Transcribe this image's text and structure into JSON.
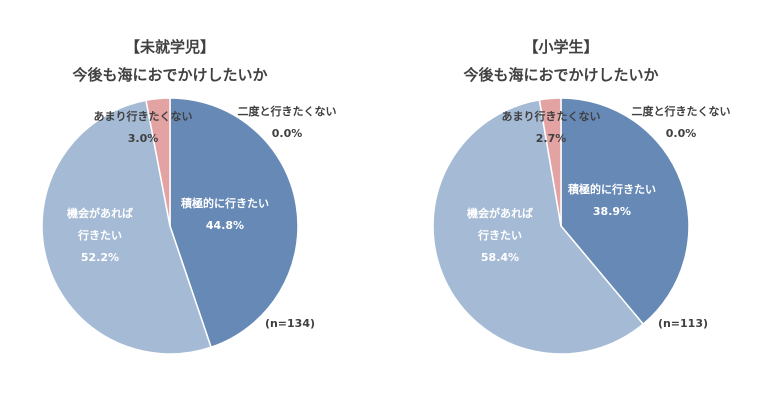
{
  "chart_data": [
    {
      "type": "pie",
      "title": [
        "【未就学児】",
        "今後も海におでかけしたいか"
      ],
      "n_label": "(n=134)",
      "categories": [
        "積極的に行きたい",
        "二度と行きたくない",
        "機会があれば行きたい",
        "あまり行きたくない"
      ],
      "values": [
        44.8,
        0.0,
        52.2,
        3.0
      ],
      "value_labels": [
        "44.8%",
        "0.0%",
        "52.2%",
        "3.0%"
      ],
      "colors": [
        "#6689b6",
        "#6689b6",
        "#a5bbd5",
        "#e4a3a3"
      ]
    },
    {
      "type": "pie",
      "title": [
        "【小学生】",
        "今後も海におでかけしたいか"
      ],
      "n_label": "(n=113)",
      "categories": [
        "積極的に行きたい",
        "二度と行きたくない",
        "機会があれば行きたい",
        "あまり行きたくない"
      ],
      "values": [
        38.9,
        0.0,
        58.4,
        2.7
      ],
      "value_labels": [
        "38.9%",
        "0.0%",
        "58.4%",
        "2.7%"
      ],
      "colors": [
        "#6689b6",
        "#6689b6",
        "#a5bbd5",
        "#e4a3a3"
      ]
    }
  ]
}
